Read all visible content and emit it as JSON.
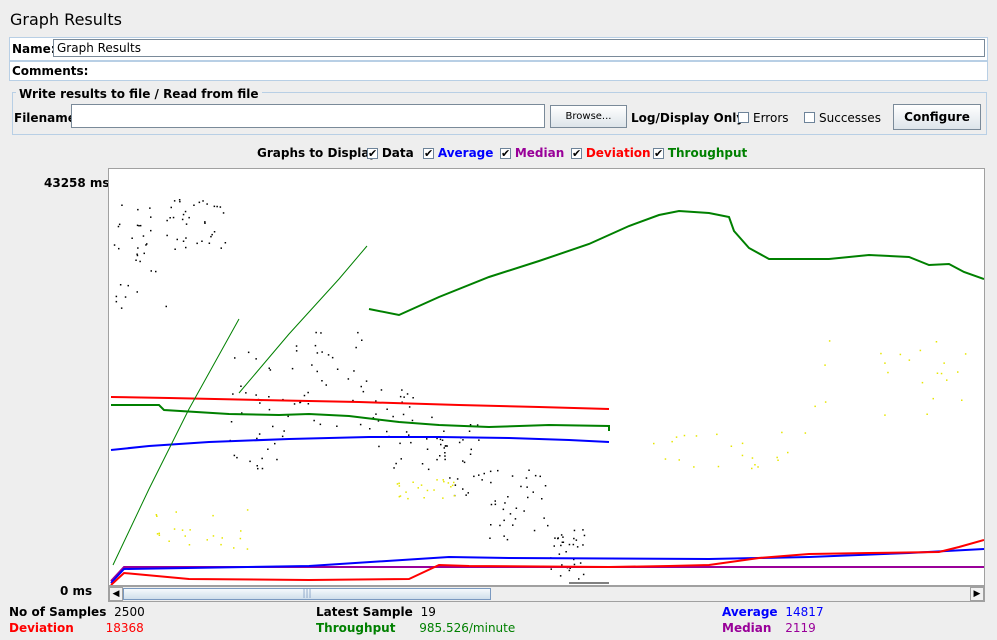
{
  "window": {
    "title": "Graph Results"
  },
  "name_row": {
    "label": "Name:",
    "value": "Graph Results"
  },
  "comments_row": {
    "label": "Comments:"
  },
  "file_panel": {
    "legend": "Write results to file / Read from file",
    "filename_label": "Filename",
    "filename_value": "",
    "browse_label": "Browse...",
    "log_display_label": "Log/Display Only:",
    "errors_label": "Errors",
    "successes_label": "Successes",
    "configure_label": "Configure"
  },
  "display_options": {
    "label": "Graphs to Display",
    "items": [
      {
        "label": "Data",
        "checked": true,
        "color": "#000000"
      },
      {
        "label": "Average",
        "checked": true,
        "color": "#0000ff"
      },
      {
        "label": "Median",
        "checked": true,
        "color": "#990099"
      },
      {
        "label": "Deviation",
        "checked": true,
        "color": "#ff0000"
      },
      {
        "label": "Throughput",
        "checked": true,
        "color": "#008000"
      }
    ]
  },
  "graph": {
    "y_max_label": "43258 ms",
    "y_min_label": "0 ms",
    "colors": {
      "data": "#000000",
      "average": "#0000ff",
      "median": "#990099",
      "deviation": "#ff0000",
      "throughput": "#008000",
      "throughput_old": "#ffff00"
    }
  },
  "stats": {
    "samples_label": "No of Samples",
    "samples_value": "2500",
    "deviation_label": "Deviation",
    "deviation_value": "18368",
    "latest_label": "Latest Sample",
    "latest_value": "19",
    "throughput_label": "Throughput",
    "throughput_value": "985.526/minute",
    "average_label": "Average",
    "average_value": "14817",
    "median_label": "Median",
    "median_value": "2119"
  }
}
